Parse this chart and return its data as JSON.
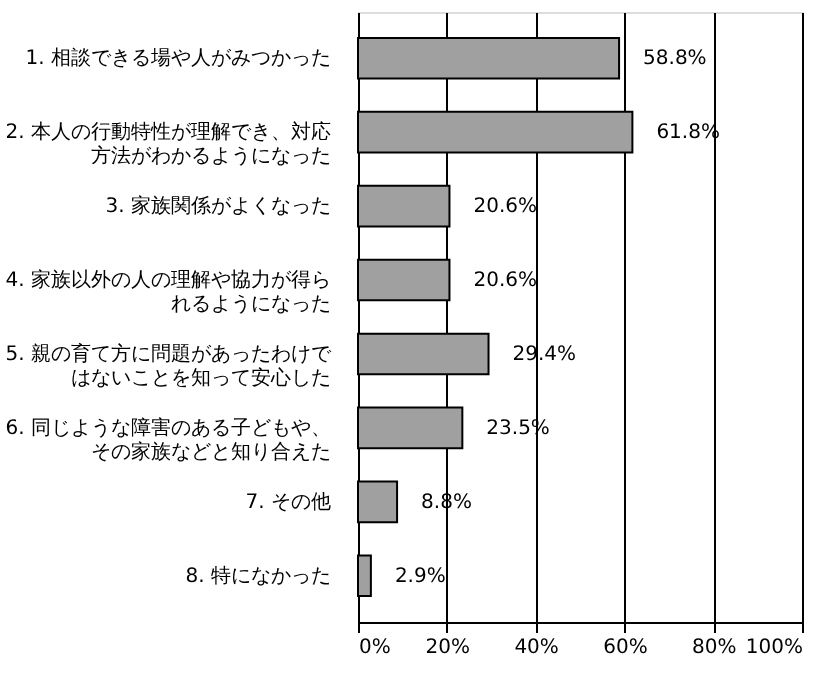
{
  "chart_data": {
    "type": "bar",
    "orientation": "horizontal",
    "categories": [
      "1. 相談できる場や人がみつかった",
      "2. 本人の行動特性が理解でき、対応方法がわかるようになった",
      "3. 家族関係がよくなった",
      "4. 家族以外の人の理解や協力が得られるようになった",
      "5. 親の育て方に問題があったわけではないことを知って安心した",
      "6. 同じような障害のある子どもや、その家族などと知り合えた",
      "7. その他",
      "8. 特になかった"
    ],
    "values": [
      58.8,
      61.8,
      20.6,
      20.6,
      29.4,
      23.5,
      8.8,
      2.9
    ],
    "value_labels": [
      "58.8%",
      "61.8%",
      "20.6%",
      "20.6%",
      "29.4%",
      "23.5%",
      "8.8%",
      "2.9%"
    ],
    "color": "#a0a0a0",
    "xlim": [
      0,
      100
    ],
    "xticks": [
      {
        "value": 0,
        "label": "0%"
      },
      {
        "value": 20,
        "label": "20%"
      },
      {
        "value": 40,
        "label": "40%"
      },
      {
        "value": 60,
        "label": "60%"
      },
      {
        "value": 80,
        "label": "80%"
      },
      {
        "value": 100,
        "label": "100%"
      }
    ],
    "grid": "x"
  }
}
